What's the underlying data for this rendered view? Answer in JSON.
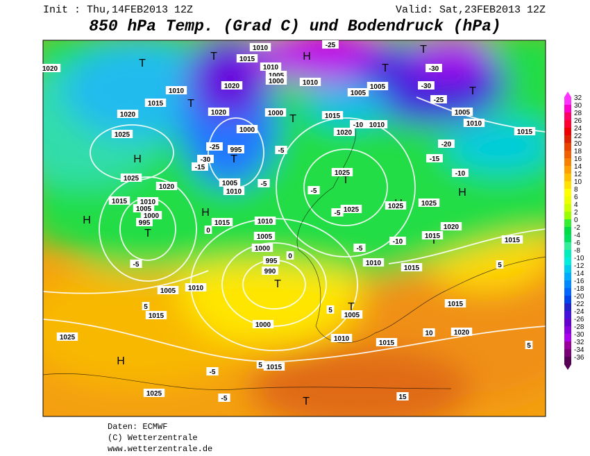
{
  "header": {
    "init": "Init : Thu,14FEB2013 12Z",
    "valid": "Valid: Sat,23FEB2013 12Z",
    "title": "850 hPa Temp. (Grad C) und Bodendruck (hPa)"
  },
  "colorbar": {
    "ticks": [
      32,
      30,
      28,
      26,
      24,
      22,
      20,
      18,
      16,
      14,
      12,
      10,
      8,
      6,
      4,
      2,
      0,
      -2,
      -4,
      -6,
      -8,
      -10,
      -12,
      -14,
      -16,
      -18,
      -20,
      -22,
      -24,
      -26,
      -28,
      -30,
      -32,
      -34,
      -36
    ],
    "colors": [
      "#ff33ff",
      "#ff00cc",
      "#ff0066",
      "#ff0033",
      "#ee0000",
      "#dd2200",
      "#e84400",
      "#f06000",
      "#f88000",
      "#ffa000",
      "#ffc000",
      "#ffe000",
      "#ffff00",
      "#eeff00",
      "#ccff00",
      "#99ff00",
      "#33ee33",
      "#00dd44",
      "#00e060",
      "#33ee99",
      "#00eebb",
      "#00eedd",
      "#00ccee",
      "#00aaff",
      "#0088ff",
      "#0066ff",
      "#0044ee",
      "#2222cc",
      "#4411dd",
      "#6600cc",
      "#8800dd",
      "#aa00ee",
      "#990099",
      "#770077",
      "#550055"
    ]
  },
  "map": {
    "labels": [
      "H",
      "T",
      "T",
      "T",
      "T",
      "T",
      "T",
      "T",
      "H",
      "T",
      "H",
      "T",
      "H",
      "H",
      "H",
      "T",
      "T",
      "T",
      "H",
      "T",
      "T",
      "1010",
      "1015",
      "1020",
      "1025",
      "1020",
      "1010",
      "1020",
      "1020",
      "1000",
      "1000",
      "1010",
      "1015",
      "-25",
      "-30",
      "-30",
      "-25",
      "1005",
      "1010",
      "1015",
      "-20",
      "-15",
      "-10",
      "1025",
      "1020",
      "1015",
      "1010",
      "1005",
      "1000",
      "995",
      "-25",
      "995",
      "-30",
      "-15",
      "1005",
      "1010",
      "-5",
      "-5",
      "0",
      "1015",
      "1010",
      "1005",
      "1000",
      "995",
      "990",
      "-5",
      "1005",
      "1010",
      "5",
      "1015",
      "1000",
      "-5",
      "1025",
      "1025",
      "-5",
      "1025",
      "1025",
      "1020",
      "-10",
      "1015",
      "-5",
      "1010",
      "0",
      "1015",
      "1015",
      "5",
      "1015",
      "1005",
      "5",
      "1010",
      "1015",
      "10",
      "1020",
      "5",
      "1025",
      "-5",
      "1015",
      "5",
      "1025",
      "-5",
      "15",
      "-10",
      "1010",
      "1020",
      "1005",
      "1005",
      "1015",
      "1010",
      "1005",
      "1000"
    ]
  },
  "footer": {
    "lines": [
      "Daten: ECMWF",
      "(C) Wetterzentrale",
      "www.wetterzentrale.de"
    ]
  }
}
